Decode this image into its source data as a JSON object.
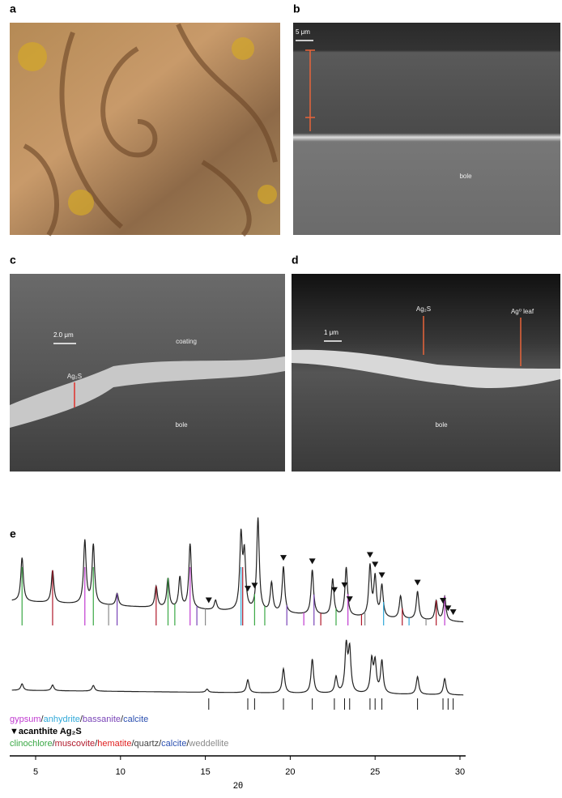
{
  "panels": [
    {
      "label": "a"
    },
    {
      "label": "b",
      "scale_bar": "5 μm",
      "annotations": [
        "bole"
      ]
    },
    {
      "label": "c",
      "scale_bar": "2.0 μm",
      "annotations": [
        "coating",
        "Ag₂S",
        "bole"
      ]
    },
    {
      "label": "d",
      "scale_bar": "1 μm",
      "annotations": [
        "Ag₂S",
        "Ag⁰ leaf",
        "bole"
      ]
    }
  ],
  "xrd": {
    "label": "e",
    "xlabel": "2θ",
    "xlim": [
      3.6,
      30.2
    ],
    "xticks": [
      5,
      10,
      15,
      20,
      25,
      30
    ],
    "top_pattern": {
      "x": [
        4.2,
        6.0,
        7.9,
        8.4,
        9.8,
        12.1,
        12.8,
        13.5,
        14.1,
        15.6,
        17.1,
        17.3,
        18.1,
        18.9,
        19.6,
        21.3,
        22.5,
        23.3,
        24.7,
        25.0,
        25.4,
        26.5,
        27.5,
        28.6,
        29.1
      ],
      "intensity": [
        54,
        40,
        78,
        73,
        15,
        26,
        36,
        38,
        80,
        12,
        90,
        66,
        115,
        36,
        57,
        55,
        45,
        60,
        62,
        48,
        39,
        28,
        35,
        24,
        30
      ]
    },
    "bottom_pattern": {
      "x": [
        4.2,
        6.0,
        8.4,
        15.1,
        17.5,
        19.6,
        21.3,
        22.7,
        23.3,
        23.5,
        24.8,
        25.0,
        25.4,
        27.5,
        29.1
      ],
      "intensity": [
        8,
        7,
        7,
        4,
        16,
        30,
        42,
        20,
        57,
        52,
        40,
        37,
        40,
        22,
        20
      ]
    },
    "acanthite": [
      15.2,
      17.5,
      17.9,
      19.6,
      21.3,
      22.6,
      23.2,
      23.5,
      24.7,
      25.0,
      25.4,
      27.5,
      29.0,
      29.3,
      29.6
    ],
    "sticks": [
      {
        "color": "#3aa845",
        "x": [
          4.2,
          8.4,
          12.8,
          13.2,
          17.9,
          18.5,
          22.7
        ]
      },
      {
        "color": "#b0182a",
        "x": [
          6.0,
          12.1,
          17.2,
          21.8,
          24.2,
          26.6,
          28.6
        ]
      },
      {
        "color": "#c03ad0",
        "x": [
          7.9,
          14.1,
          20.8,
          23.4,
          29.1
        ]
      },
      {
        "color": "#2fa8d8",
        "x": [
          17.1,
          25.5,
          27.0
        ]
      },
      {
        "color": "#7a45b8",
        "x": [
          9.8,
          14.5,
          19.8,
          21.4
        ]
      },
      {
        "color": "#8a8a8a",
        "x": [
          9.3,
          15.0,
          24.4,
          28.0
        ]
      }
    ],
    "legend": [
      [
        {
          "text": "gypsum",
          "color": "#c03ad0"
        },
        {
          "text": "/",
          "color": "#222"
        },
        {
          "text": "anhydrite",
          "color": "#2fa8d8"
        },
        {
          "text": "/",
          "color": "#222"
        },
        {
          "text": "bassanite",
          "color": "#7a45b8"
        },
        {
          "text": "/",
          "color": "#222"
        },
        {
          "text": "calcite",
          "color": "#2b4fb0"
        }
      ],
      [
        {
          "text": "▼acanthite Ag₂S",
          "color": "#000"
        }
      ],
      [
        {
          "text": "clinochlore",
          "color": "#3aa845"
        },
        {
          "text": "/",
          "color": "#222"
        },
        {
          "text": "muscovite",
          "color": "#b0182a"
        },
        {
          "text": "/",
          "color": "#222"
        },
        {
          "text": "hematite",
          "color": "#e02020"
        },
        {
          "text": "/",
          "color": "#222"
        },
        {
          "text": "quartz",
          "color": "#444"
        },
        {
          "text": "/",
          "color": "#222"
        },
        {
          "text": "calcite",
          "color": "#2b4fb0"
        },
        {
          "text": "/",
          "color": "#222"
        },
        {
          "text": "weddellite",
          "color": "#8a8a8a"
        }
      ]
    ]
  }
}
